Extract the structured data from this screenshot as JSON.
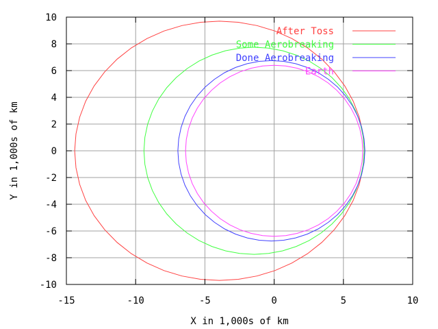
{
  "chart_data": {
    "type": "line",
    "title": "",
    "xlabel": "X in 1,000s of km",
    "ylabel": "Y in 1,000s of km",
    "xlim": [
      -15,
      10
    ],
    "ylim": [
      -10,
      10
    ],
    "xticks": [
      "-15",
      "-10",
      "-5",
      "0",
      "5",
      "10"
    ],
    "yticks": [
      "-10",
      "-8",
      "-6",
      "-4",
      "-2",
      "0",
      "2",
      "4",
      "6",
      "8",
      "10"
    ],
    "grid": true,
    "legend_position": "top-right",
    "series": [
      {
        "name": "After Toss",
        "color": "#ff4040",
        "shape": "ellipse",
        "center": [
          -3.95,
          0
        ],
        "semi_axes": [
          10.45,
          9.7
        ]
      },
      {
        "name": "Some Aerobreaking",
        "color": "#40ff40",
        "shape": "ellipse",
        "center": [
          -1.45,
          0
        ],
        "semi_axes": [
          7.95,
          7.75
        ]
      },
      {
        "name": "Done Aerobreaking",
        "color": "#4040ff",
        "shape": "ellipse",
        "center": [
          -0.2,
          0
        ],
        "semi_axes": [
          6.75,
          6.75
        ]
      },
      {
        "name": "Earth",
        "color": "#ff40ff",
        "shape": "circle",
        "center": [
          0,
          0
        ],
        "semi_axes": [
          6.4,
          6.4
        ]
      }
    ]
  }
}
